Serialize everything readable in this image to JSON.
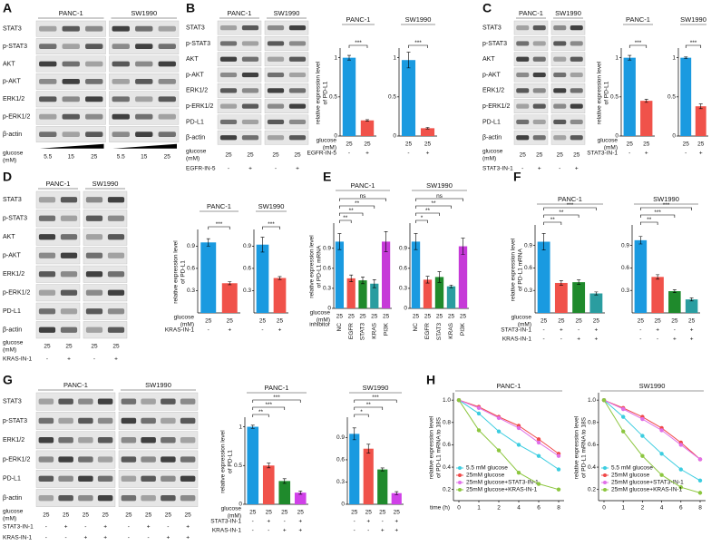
{
  "panel_labels": [
    "A",
    "B",
    "C",
    "D",
    "E",
    "F",
    "G",
    "H"
  ],
  "blots": [
    {
      "cell_lines": [
        "PANC-1",
        "SW1990"
      ],
      "rows": [
        "STAT3",
        "p-STAT3",
        "AKT",
        "p-AKT",
        "ERK1/2",
        "p-ERK1/2",
        "β-actin"
      ],
      "conditions": [
        {
          "label": [
            "glucose",
            "(mM)"
          ],
          "values": [
            "5.5",
            "15",
            "25",
            "5.5",
            "15",
            "25"
          ]
        }
      ]
    },
    {
      "cell_lines": [
        "PANC-1",
        "SW1990"
      ],
      "rows": [
        "STAT3",
        "p-STAT3",
        "AKT",
        "p-AKT",
        "ERK1/2",
        "p-ERK1/2",
        "PD-L1",
        "β-actin"
      ],
      "conditions": [
        {
          "label": [
            "glucose",
            "(mM)"
          ],
          "values": [
            "25",
            "25",
            "25",
            "25"
          ]
        },
        {
          "label": [
            "EGFR-IN-5"
          ],
          "values": [
            "-",
            "+",
            "-",
            "+"
          ]
        }
      ]
    },
    {
      "cell_lines": [
        "PANC-1",
        "SW1990"
      ],
      "rows": [
        "STAT3",
        "p-STAT3",
        "AKT",
        "p-AKT",
        "ERK1/2",
        "p-ERK1/2",
        "PD-L1",
        "β-actin"
      ],
      "conditions": [
        {
          "label": [
            "glucose",
            "(mM)"
          ],
          "values": [
            "25",
            "25",
            "25",
            "25"
          ]
        },
        {
          "label": [
            "STAT3-IN-1"
          ],
          "values": [
            "-",
            "+",
            "-",
            "+"
          ]
        }
      ]
    },
    {
      "cell_lines": [
        "PANC-1",
        "SW1990"
      ],
      "rows": [
        "STAT3",
        "p-STAT3",
        "AKT",
        "p-AKT",
        "ERK1/2",
        "p-ERK1/2",
        "PD-L1",
        "β-actin"
      ],
      "conditions": [
        {
          "label": [
            "glucose",
            "(mM)"
          ],
          "values": [
            "25",
            "25",
            "25",
            "25"
          ]
        },
        {
          "label": [
            "KRAS-IN-1"
          ],
          "values": [
            "-",
            "+",
            "-",
            "+"
          ]
        }
      ]
    },
    {
      "cell_lines": [
        "PANC-1",
        "SW1990"
      ],
      "rows": [
        "STAT3",
        "p-STAT3",
        "ERK1/2",
        "p-ERK1/2",
        "PD-L1",
        "β-actin"
      ],
      "conditions": [
        {
          "label": [
            "glucose",
            "(mM)"
          ],
          "values": [
            "25",
            "25",
            "25",
            "25",
            "25",
            "25",
            "25",
            "25"
          ]
        },
        {
          "label": [
            "STAT3-IN-1"
          ],
          "values": [
            "-",
            "+",
            "-",
            "+",
            "-",
            "+",
            "-",
            "+"
          ]
        },
        {
          "label": [
            "KRAS-IN-1"
          ],
          "values": [
            "-",
            "-",
            "+",
            "+",
            "-",
            "-",
            "+",
            "+"
          ]
        }
      ]
    }
  ],
  "chart_data": [
    {
      "type": "bar",
      "title": "PANC-1",
      "y_label": [
        "relative expression level",
        "of PD-L1"
      ],
      "values": [
        1,
        0.2
      ],
      "errors": [
        0.03,
        0.01
      ],
      "colors": [
        "#1a9ae0",
        "#f0524a"
      ],
      "ylim": [
        0,
        1.1
      ],
      "yticks": [
        0,
        0.5,
        1
      ],
      "significance": [
        null,
        "***"
      ],
      "conditions": [
        {
          "label": [
            "glucose",
            "(mM)"
          ],
          "values": [
            "25",
            "25"
          ]
        },
        {
          "label": [
            "EGFR-IN-5"
          ],
          "values": [
            "-",
            "+"
          ]
        }
      ]
    },
    {
      "type": "bar",
      "title": "SW1990",
      "values": [
        0.97,
        0.1
      ],
      "errors": [
        0.1,
        0.01
      ],
      "colors": [
        "#1a9ae0",
        "#f0524a"
      ],
      "ylim": [
        0,
        1.1
      ],
      "yticks": [
        0,
        0.5,
        1
      ],
      "significance": [
        null,
        "***"
      ],
      "conditions": [
        {
          "values": [
            "25",
            "25"
          ]
        },
        {
          "values": [
            "-",
            "+"
          ]
        }
      ]
    },
    {
      "type": "bar",
      "title": "PANC-1",
      "y_label": [
        "relative expression level",
        "of PD-L1"
      ],
      "values": [
        1,
        0.45
      ],
      "errors": [
        0.03,
        0.02
      ],
      "colors": [
        "#1a9ae0",
        "#f0524a"
      ],
      "ylim": [
        0,
        1.1
      ],
      "yticks": [
        0,
        0.5,
        1
      ],
      "significance": [
        null,
        "***"
      ],
      "conditions": [
        {
          "label": [
            "glucose",
            "(mM)"
          ],
          "values": [
            "25",
            "25"
          ]
        },
        {
          "label": [
            "STAT3-IN-1"
          ],
          "values": [
            "-",
            "+"
          ]
        }
      ]
    },
    {
      "type": "bar",
      "title": "SW1990",
      "values": [
        1,
        0.38
      ],
      "errors": [
        0.01,
        0.03
      ],
      "colors": [
        "#1a9ae0",
        "#f0524a"
      ],
      "ylim": [
        0,
        1.1
      ],
      "yticks": [
        0,
        0.5,
        1
      ],
      "significance": [
        null,
        "***"
      ],
      "conditions": [
        {
          "values": [
            "25",
            "25"
          ]
        },
        {
          "values": [
            "-",
            "+"
          ]
        }
      ]
    },
    {
      "type": "bar",
      "title": "PANC-1",
      "y_label": [
        "relative expression level",
        "of PD-L1"
      ],
      "values": [
        0.95,
        0.4
      ],
      "errors": [
        0.05,
        0.02
      ],
      "colors": [
        "#1a9ae0",
        "#f0524a"
      ],
      "ylim": [
        0,
        1.1
      ],
      "yticks": [
        0.3,
        0.6,
        0.9
      ],
      "significance": [
        null,
        "***"
      ],
      "conditions": [
        {
          "label": [
            "glucose",
            "(mM)"
          ],
          "values": [
            "25",
            "25"
          ]
        },
        {
          "label": [
            "KRAS-IN-1"
          ],
          "values": [
            "-",
            "+"
          ]
        }
      ]
    },
    {
      "type": "bar",
      "title": "SW1990",
      "values": [
        0.92,
        0.47
      ],
      "errors": [
        0.1,
        0.02
      ],
      "colors": [
        "#1a9ae0",
        "#f0524a"
      ],
      "ylim": [
        0,
        1.1
      ],
      "yticks": [
        0.3,
        0.6,
        0.9
      ],
      "significance": [
        null,
        "***"
      ],
      "conditions": [
        {
          "values": [
            "25",
            "25"
          ]
        },
        {
          "values": [
            "-",
            "+"
          ]
        }
      ]
    },
    {
      "type": "bar",
      "title": "PANC-1",
      "y_label": [
        "relative expression level",
        "of PD-L1 mRNA"
      ],
      "categories": [
        "NC",
        "EGFR",
        "STAT3",
        "KRAS",
        "PI3K"
      ],
      "category_label": "inhibitor",
      "values": [
        1,
        0.45,
        0.42,
        0.37,
        1
      ],
      "errors": [
        0.12,
        0.05,
        0.05,
        0.06,
        0.15
      ],
      "colors": [
        "#1a9ae0",
        "#f0524a",
        "#1f8a2c",
        "#2a9da0",
        "#c63ad8"
      ],
      "ylim": [
        0,
        1.25
      ],
      "yticks": [
        0,
        0.3,
        0.6,
        0.9
      ],
      "significance": [
        null,
        "**",
        "**",
        "**",
        "ns"
      ],
      "conditions": [
        {
          "label": [
            "glucose",
            "(mM)"
          ],
          "values": [
            "25",
            "25",
            "25",
            "25",
            "25"
          ]
        }
      ]
    },
    {
      "type": "bar",
      "title": "SW1990",
      "categories": [
        "NC",
        "EGFR",
        "STAT3",
        "KRAS",
        "PI3K"
      ],
      "values": [
        1,
        0.43,
        0.47,
        0.33,
        0.93
      ],
      "errors": [
        0.12,
        0.05,
        0.08,
        0.02,
        0.12
      ],
      "colors": [
        "#1a9ae0",
        "#f0524a",
        "#1f8a2c",
        "#2a9da0",
        "#c63ad8"
      ],
      "ylim": [
        0,
        1.25
      ],
      "yticks": [
        0,
        0.3,
        0.6,
        0.9
      ],
      "significance": [
        null,
        "*",
        "**",
        "**",
        "ns"
      ],
      "conditions": [
        {
          "values": [
            "25",
            "25",
            "25",
            "25",
            "25"
          ]
        }
      ]
    },
    {
      "type": "bar",
      "title": "PANC-1",
      "y_label": [
        "relative expression level",
        "of PD-L1 mRNA"
      ],
      "values": [
        0.95,
        0.4,
        0.41,
        0.26
      ],
      "errors": [
        0.11,
        0.03,
        0.03,
        0.02
      ],
      "colors": [
        "#1a9ae0",
        "#f0524a",
        "#1f8a2c",
        "#2a9da0"
      ],
      "ylim": [
        0,
        1.15
      ],
      "yticks": [
        0.3,
        0.6,
        0.9
      ],
      "significance": [
        null,
        "**",
        "**",
        "***"
      ],
      "conditions": [
        {
          "label": [
            "glucose",
            "(mM)"
          ],
          "values": [
            "25",
            "25",
            "25",
            "25"
          ]
        },
        {
          "label": [
            "STAT3-IN-1"
          ],
          "values": [
            "-",
            "+",
            "-",
            "+"
          ]
        },
        {
          "label": [
            "KRAS-IN-1"
          ],
          "values": [
            "-",
            "-",
            "+",
            "+"
          ]
        }
      ]
    },
    {
      "type": "bar",
      "title": "SW1990",
      "values": [
        0.97,
        0.48,
        0.29,
        0.18
      ],
      "errors": [
        0.05,
        0.03,
        0.02,
        0.02
      ],
      "colors": [
        "#1a9ae0",
        "#f0524a",
        "#1f8a2c",
        "#2a9da0"
      ],
      "ylim": [
        0,
        1.15
      ],
      "yticks": [
        0.3,
        0.6,
        0.9
      ],
      "significance": [
        null,
        "**",
        "***",
        "***"
      ],
      "conditions": [
        {
          "values": [
            "25",
            "25",
            "25",
            "25"
          ]
        },
        {
          "values": [
            "-",
            "+",
            "-",
            "+"
          ]
        },
        {
          "values": [
            "-",
            "-",
            "+",
            "+"
          ]
        }
      ]
    },
    {
      "type": "bar",
      "title": "PANC-1",
      "y_label": [
        "relative expression level",
        "of PD-L1"
      ],
      "values": [
        1,
        0.5,
        0.3,
        0.15
      ],
      "errors": [
        0.02,
        0.03,
        0.03,
        0.02
      ],
      "colors": [
        "#1a9ae0",
        "#f0524a",
        "#1f8a2c",
        "#d040e8"
      ],
      "ylim": [
        0,
        1.1
      ],
      "yticks": [
        0,
        0.5,
        1
      ],
      "significance": [
        null,
        "**",
        "***",
        "***"
      ],
      "conditions": [
        {
          "label": [
            "glucose",
            "(mM)"
          ],
          "values": [
            "25",
            "25",
            "25",
            "25"
          ]
        },
        {
          "label": [
            "STAT3-IN-1"
          ],
          "values": [
            "-",
            "+",
            "-",
            "+"
          ]
        },
        {
          "label": [
            "KRAS-IN-1"
          ],
          "values": [
            "-",
            "-",
            "+",
            "+"
          ]
        }
      ]
    },
    {
      "type": "bar",
      "title": "SW1990",
      "values": [
        0.95,
        0.75,
        0.47,
        0.15
      ],
      "errors": [
        0.08,
        0.06,
        0.02,
        0.02
      ],
      "colors": [
        "#1a9ae0",
        "#f0524a",
        "#1f8a2c",
        "#d040e8"
      ],
      "ylim": [
        0,
        1.15
      ],
      "yticks": [
        0,
        0.3,
        0.6,
        0.9
      ],
      "significance": [
        null,
        "*",
        "**",
        "***"
      ],
      "conditions": [
        {
          "values": [
            "25",
            "25",
            "25",
            "25"
          ]
        },
        {
          "values": [
            "-",
            "+",
            "-",
            "+"
          ]
        },
        {
          "values": [
            "-",
            "-",
            "+",
            "+"
          ]
        }
      ]
    },
    {
      "type": "line",
      "title": "PANC-1",
      "y_label": [
        "relative expression level",
        "of PD-L1 mRNA to 18S"
      ],
      "x_label": "time (h)",
      "categories": [
        "0",
        "1",
        "2",
        "4",
        "6",
        "8"
      ],
      "ylim": [
        0.1,
        1.05
      ],
      "yticks": [
        0.2,
        0.4,
        0.6,
        0.8,
        {
          "value": 1,
          "label": "1.0"
        }
      ],
      "series": [
        {
          "name": "5.5 mM glucose",
          "color": "#3ccde0",
          "values": [
            1,
            0.88,
            0.72,
            0.6,
            0.5,
            0.38
          ]
        },
        {
          "name": "25mM glucose",
          "color": "#f04848",
          "values": [
            1,
            0.94,
            0.85,
            0.77,
            0.65,
            0.52
          ]
        },
        {
          "name": "25mM glucose+STAT3-IN-1",
          "color": "#e070e8",
          "values": [
            1,
            0.93,
            0.84,
            0.75,
            0.62,
            0.5
          ]
        },
        {
          "name": "25mM glucose+KRAS-IN-1",
          "color": "#8cc63f",
          "values": [
            1,
            0.73,
            0.55,
            0.35,
            0.25,
            0.2
          ]
        }
      ]
    },
    {
      "type": "line",
      "title": "SW1990",
      "y_label": [
        "relative expression level",
        "of PD-L1 mRNA to 18S"
      ],
      "categories": [
        "0",
        "1",
        "2",
        "4",
        "6",
        "8"
      ],
      "ylim": [
        0.1,
        1.05
      ],
      "yticks": [
        0.2,
        0.4,
        0.6,
        0.8,
        {
          "value": 1,
          "label": "1.0"
        }
      ],
      "series": [
        {
          "name": "5.5 mM glucose",
          "color": "#3ccde0",
          "values": [
            1,
            0.85,
            0.68,
            0.52,
            0.38,
            0.28
          ]
        },
        {
          "name": "25mM glucose",
          "color": "#f04848",
          "values": [
            1,
            0.93,
            0.85,
            0.75,
            0.62,
            0.47
          ]
        },
        {
          "name": "25mM glucose+STAT3-IN-1",
          "color": "#e070e8",
          "values": [
            1,
            0.92,
            0.83,
            0.73,
            0.6,
            0.47
          ]
        },
        {
          "name": "25mM glucose+KRAS-IN-1",
          "color": "#8cc63f",
          "values": [
            1,
            0.72,
            0.5,
            0.33,
            0.22,
            0.17
          ]
        }
      ]
    }
  ]
}
